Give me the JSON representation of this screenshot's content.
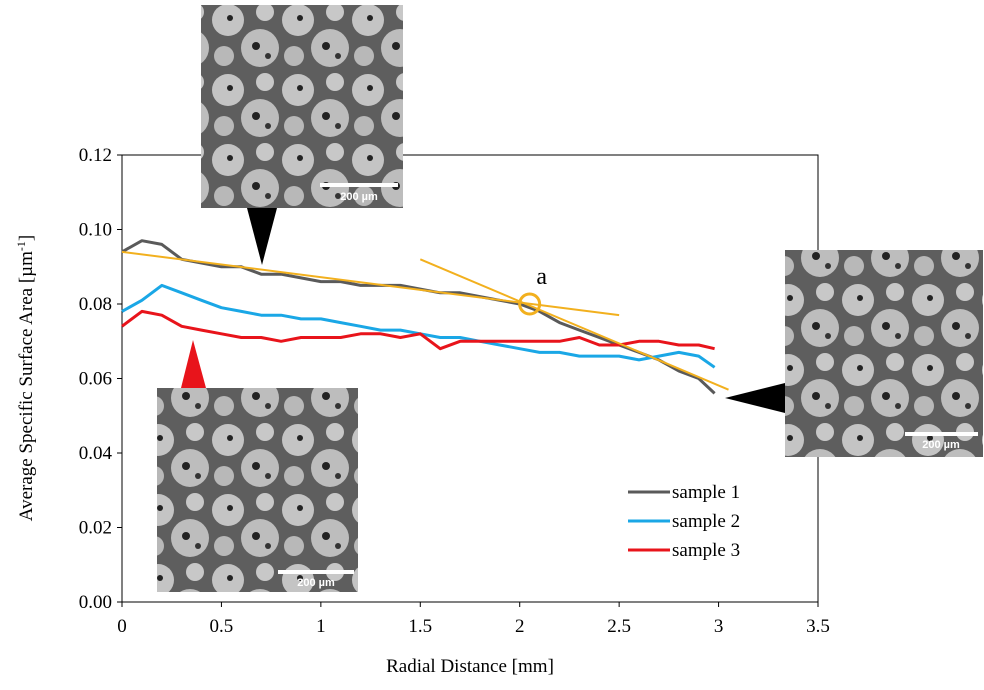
{
  "chart_data": {
    "type": "line",
    "x_label": "Radial Distance [mm]",
    "y_label": "Average Specific Surface Area [µm",
    "y_label_sup": "-1",
    "y_label_end": "]",
    "x": [
      0,
      0.1,
      0.2,
      0.3,
      0.4,
      0.5,
      0.6,
      0.7,
      0.8,
      0.9,
      1.0,
      1.1,
      1.2,
      1.3,
      1.4,
      1.5,
      1.6,
      1.7,
      1.8,
      1.9,
      2.0,
      2.1,
      2.2,
      2.3,
      2.4,
      2.5,
      2.6,
      2.7,
      2.8,
      2.9,
      2.98
    ],
    "series": [
      {
        "name": "sample 1",
        "color": "#5a5a5a",
        "values": [
          0.094,
          0.097,
          0.096,
          0.092,
          0.091,
          0.09,
          0.09,
          0.088,
          0.088,
          0.087,
          0.086,
          0.086,
          0.085,
          0.085,
          0.085,
          0.084,
          0.083,
          0.083,
          0.082,
          0.081,
          0.08,
          0.078,
          0.075,
          0.073,
          0.071,
          0.069,
          0.067,
          0.065,
          0.062,
          0.06,
          0.056
        ]
      },
      {
        "name": "sample 2",
        "color": "#1aa7e6",
        "values": [
          0.078,
          0.081,
          0.085,
          0.083,
          0.081,
          0.079,
          0.078,
          0.077,
          0.077,
          0.076,
          0.076,
          0.075,
          0.074,
          0.073,
          0.073,
          0.072,
          0.071,
          0.071,
          0.07,
          0.069,
          0.068,
          0.067,
          0.067,
          0.066,
          0.066,
          0.066,
          0.065,
          0.066,
          0.067,
          0.066,
          0.063
        ]
      },
      {
        "name": "sample 3",
        "color": "#e8141b",
        "values": [
          0.074,
          0.078,
          0.077,
          0.074,
          0.073,
          0.072,
          0.071,
          0.071,
          0.07,
          0.071,
          0.071,
          0.071,
          0.072,
          0.072,
          0.071,
          0.072,
          0.068,
          0.07,
          0.07,
          0.07,
          0.07,
          0.07,
          0.07,
          0.071,
          0.069,
          0.069,
          0.07,
          0.07,
          0.069,
          0.069,
          0.068
        ]
      }
    ],
    "trend_color": "#f2b01e",
    "trend_lines": [
      {
        "x": [
          0,
          2.5
        ],
        "y": [
          0.094,
          0.077
        ]
      },
      {
        "x": [
          1.5,
          3.05
        ],
        "y": [
          0.092,
          0.057
        ]
      }
    ],
    "marker": {
      "x": 2.05,
      "y": 0.08,
      "label": "a"
    },
    "xlim": [
      0,
      3.5
    ],
    "ylim": [
      0,
      0.12
    ],
    "xticks": [
      0,
      0.5,
      1,
      1.5,
      2,
      2.5,
      3,
      3.5
    ],
    "yticks": [
      {
        "value": 0,
        "label": "0.00"
      },
      {
        "value": 0.02,
        "label": "0.02"
      },
      {
        "value": 0.04,
        "label": "0.04"
      },
      {
        "value": 0.06,
        "label": "0.06"
      },
      {
        "value": 0.08,
        "label": "0.08"
      },
      {
        "value": 0.1,
        "label": "0.10"
      },
      {
        "value": 0.12,
        "label": "0.12"
      }
    ],
    "legend": "lower right",
    "insets": [
      {
        "scale_label": "200 µm"
      },
      {
        "scale_label": "200 µm"
      },
      {
        "scale_label": "200 µm"
      }
    ]
  }
}
